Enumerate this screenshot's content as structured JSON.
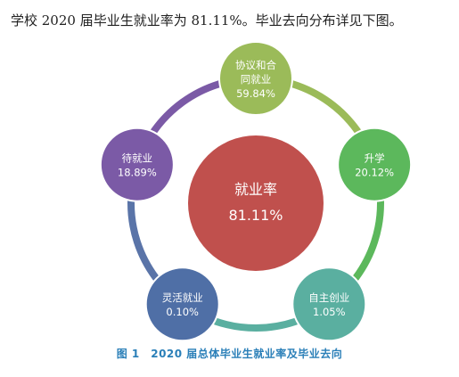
{
  "intro_text": "学校 2020 届毕业生就业率为 81.11%。毕业去向分布详见下图。",
  "center": {
    "label": "就业率",
    "value": "81.11%",
    "color": "#c0504d"
  },
  "nodes": [
    {
      "label_lines": [
        "协议和合",
        "同就业"
      ],
      "value": "59.84%",
      "color": "#9bbb59",
      "ring_color": "#9bbb59"
    },
    {
      "label_lines": [
        "升学"
      ],
      "value": "20.12%",
      "color": "#5cb85c",
      "ring_color": "#5cb85c"
    },
    {
      "label_lines": [
        "自主创业"
      ],
      "value": "1.05%",
      "color": "#5aafa0",
      "ring_color": "#5aafa0"
    },
    {
      "label_lines": [
        "灵活就业"
      ],
      "value": "0.10%",
      "color": "#4f6fa6",
      "ring_color": "#5a74a8"
    },
    {
      "label_lines": [
        "待就业"
      ],
      "value": "18.89%",
      "color": "#7b5aa6",
      "ring_color": "#7b5aa6"
    }
  ],
  "caption": "图 1　2020 届总体毕业生就业率及毕业去向"
}
